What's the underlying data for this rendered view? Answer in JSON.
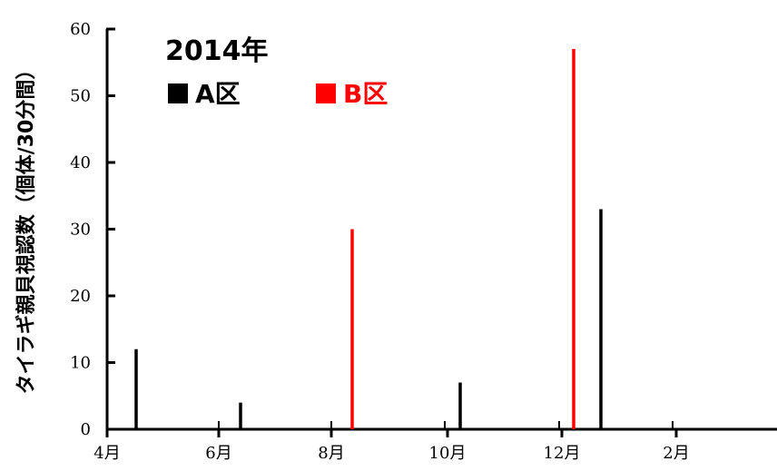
{
  "chart_data": {
    "type": "bar",
    "title": "2014年",
    "ylabel": "タイラギ親貝視認数（個体/30分間）",
    "xlabel": "",
    "ylim": [
      0,
      60
    ],
    "yticks": [
      0,
      10,
      20,
      30,
      40,
      50,
      60
    ],
    "xtick_labels": [
      "4月",
      "6月",
      "8月",
      "10月",
      "12月",
      "2月"
    ],
    "grid": false,
    "legend_placement": "top-left",
    "series": [
      {
        "name": "A区",
        "color": "#000000",
        "points": [
          {
            "x": "4月中旬",
            "y": 12
          },
          {
            "x": "6月中旬",
            "y": 4
          },
          {
            "x": "10月上旬",
            "y": 7
          },
          {
            "x": "12月下旬",
            "y": 33
          }
        ]
      },
      {
        "name": "B区",
        "color": "#ff0000",
        "points": [
          {
            "x": "8月中旬",
            "y": 30
          },
          {
            "x": "12月上旬",
            "y": 57
          }
        ]
      }
    ]
  }
}
